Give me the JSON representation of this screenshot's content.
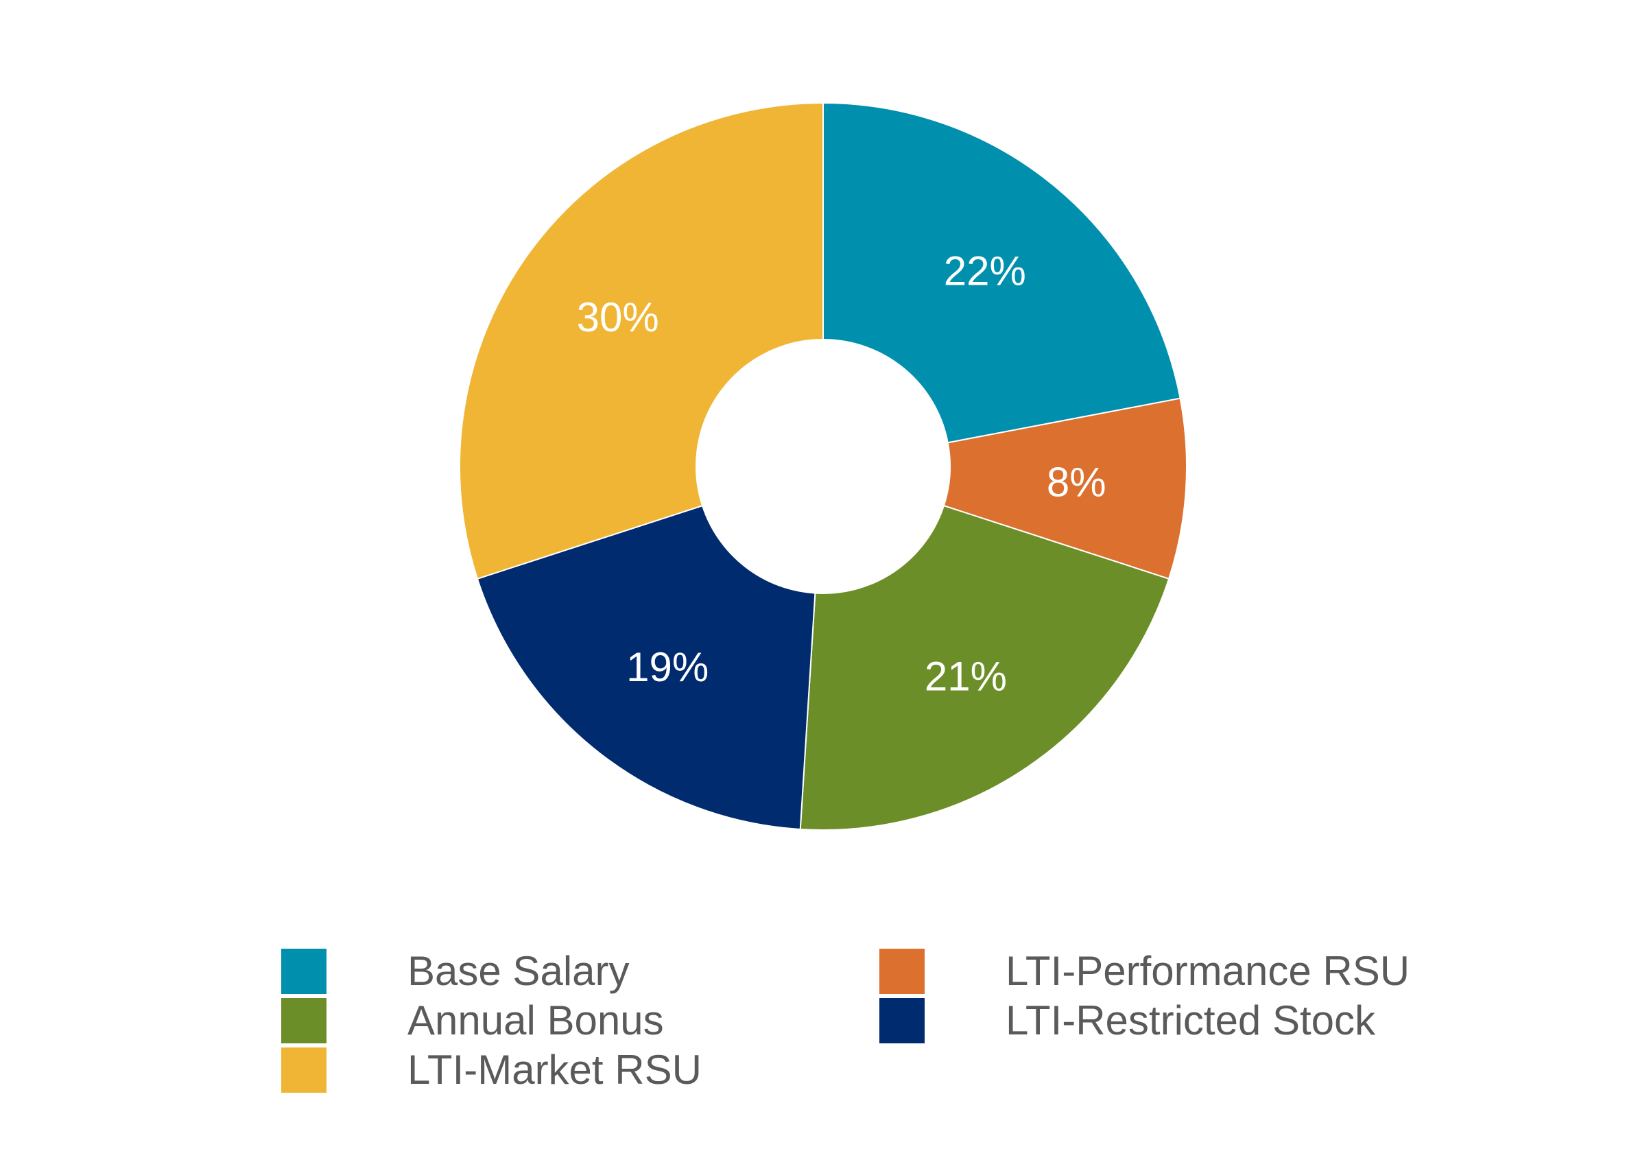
{
  "chart_data": {
    "type": "pie",
    "variant": "donut",
    "title": "",
    "slices": [
      {
        "name": "Base Salary",
        "value": 22,
        "label": "22%",
        "color": "#0090AE"
      },
      {
        "name": "LTI-Performance RSU",
        "value": 8,
        "label": "8%",
        "color": "#DC702E"
      },
      {
        "name": "Annual Bonus",
        "value": 21,
        "label": "21%",
        "color": "#6B8E28"
      },
      {
        "name": "LTI-Restricted Stock",
        "value": 19,
        "label": "19%",
        "color": "#002B6E"
      },
      {
        "name": "LTI-Market RSU",
        "value": 30,
        "label": "30%",
        "color": "#F0B535"
      }
    ],
    "legend": {
      "placement": "bottom",
      "columns": [
        [
          {
            "name": "Base Salary",
            "color": "#0090AE"
          },
          {
            "name": "Annual Bonus",
            "color": "#6B8E28"
          },
          {
            "name": "LTI-Market RSU",
            "color": "#F0B535"
          }
        ],
        [
          {
            "name": "LTI-Performance RSU",
            "color": "#DC702E"
          },
          {
            "name": "LTI-Restricted Stock",
            "color": "#002B6E"
          }
        ]
      ]
    }
  }
}
